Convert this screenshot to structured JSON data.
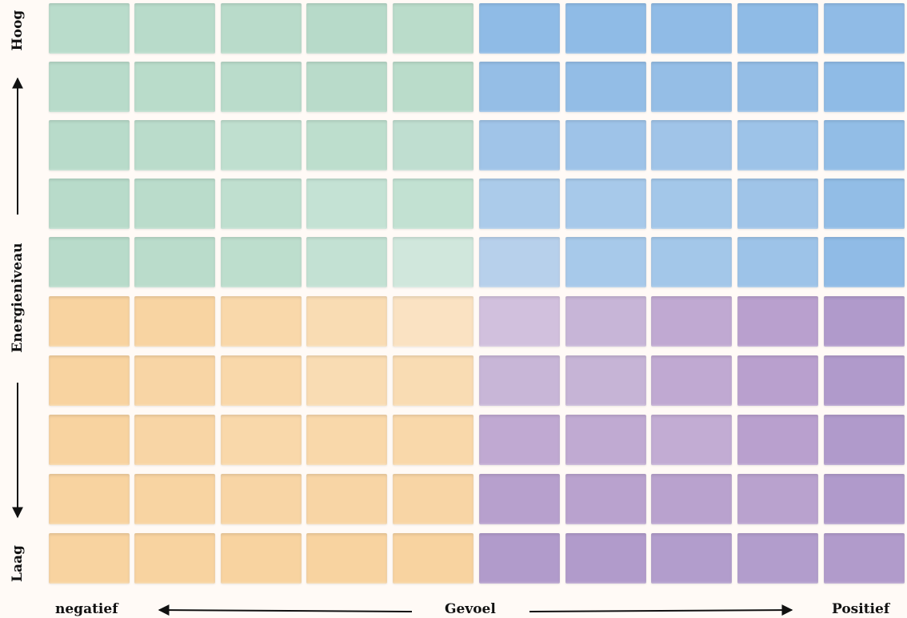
{
  "y_axis": {
    "label": "Energieniveau",
    "high": "Hoog",
    "low": "Laag"
  },
  "x_axis": {
    "label": "Gevoel",
    "negative": "negatief",
    "positive": "Positief"
  },
  "grid": {
    "rows": 10,
    "cols": 10,
    "colors": [
      [
        "#b9dccb",
        "#b8dbca",
        "#b9dbca",
        "#b7dac9",
        "#badcca",
        "#8fbbe6",
        "#8fbbe6",
        "#90bbe6",
        "#8fbbe6",
        "#90bbe6"
      ],
      [
        "#b8dbca",
        "#b9dcca",
        "#badccb",
        "#b9dbca",
        "#badcca",
        "#95bee6",
        "#93bde6",
        "#95bee6",
        "#95bee6",
        "#8fbbe6"
      ],
      [
        "#b8dbca",
        "#badccb",
        "#bfdfcf",
        "#bddecd",
        "#bfded0",
        "#a0c4e8",
        "#9ec3e8",
        "#a0c4e8",
        "#9dc3e8",
        "#92bde6"
      ],
      [
        "#b8dbca",
        "#badccb",
        "#bfdfcf",
        "#c4e2d4",
        "#c2e1d2",
        "#abcbea",
        "#a7c9ea",
        "#a3c7e9",
        "#9fc4e8",
        "#92bde6"
      ],
      [
        "#b8dbca",
        "#badccb",
        "#bddecd",
        "#c3e1d3",
        "#d0e7dc",
        "#b7d0eb",
        "#a7c9ea",
        "#a3c7e9",
        "#9dc3e8",
        "#90bbe6"
      ],
      [
        "#f8d3a0",
        "#f8d4a2",
        "#f9d8aa",
        "#f9dcb3",
        "#fae2c2",
        "#d1c0dd",
        "#c7b5d7",
        "#c0a9d2",
        "#b9a0ce",
        "#b09acb"
      ],
      [
        "#f8d3a0",
        "#f8d5a5",
        "#f9d8aa",
        "#f9dcb3",
        "#f9dcb3",
        "#c8b6d7",
        "#c6b4d6",
        "#c0a9d2",
        "#b9a0ce",
        "#b09acb"
      ],
      [
        "#f8d3a0",
        "#f8d5a5",
        "#f9d8aa",
        "#f9d8aa",
        "#f9d8aa",
        "#c0a9d2",
        "#c0aad2",
        "#c2acd3",
        "#b9a0ce",
        "#b09acb"
      ],
      [
        "#f8d3a0",
        "#f8d4a2",
        "#f8d5a5",
        "#f8d5a5",
        "#f8d5a5",
        "#b7a0cd",
        "#b9a2ce",
        "#b9a2ce",
        "#b9a2ce",
        "#b09acb"
      ],
      [
        "#f8d3a0",
        "#f8d3a0",
        "#f8d3a0",
        "#f8d3a0",
        "#f8d3a0",
        "#b19bcb",
        "#b19bcb",
        "#b29dcc",
        "#b29dcc",
        "#b19bcb"
      ]
    ]
  }
}
